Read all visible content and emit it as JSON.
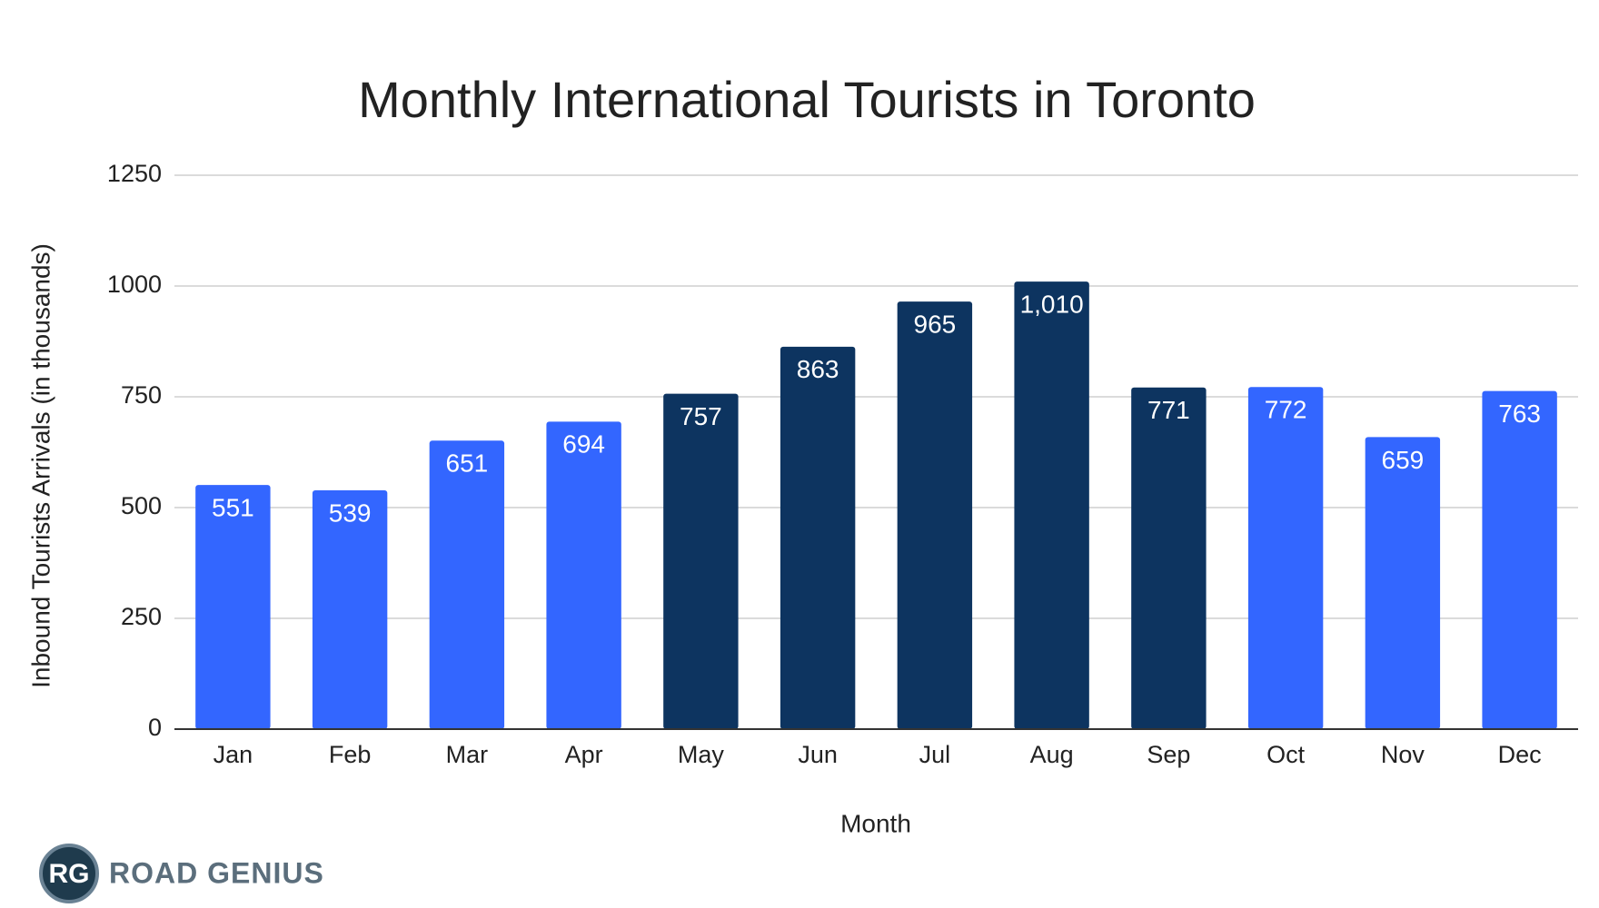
{
  "chart_data": {
    "type": "bar",
    "title": "Monthly International Tourists in Toronto",
    "x_label": "Month",
    "y_label": "Inbound Tourists Arrivals (in thousands)",
    "categories": [
      "Jan",
      "Feb",
      "Mar",
      "Apr",
      "May",
      "Jun",
      "Jul",
      "Aug",
      "Sep",
      "Oct",
      "Nov",
      "Dec"
    ],
    "values": [
      551,
      539,
      651,
      694,
      757,
      863,
      965,
      1010,
      771,
      772,
      659,
      763
    ],
    "value_labels": [
      "551",
      "539",
      "651",
      "694",
      "757",
      "863",
      "965",
      "1,010",
      "771",
      "772",
      "659",
      "763"
    ],
    "colors": [
      "#3366ff",
      "#3366ff",
      "#3366ff",
      "#3366ff",
      "#0d3460",
      "#0d3460",
      "#0d3460",
      "#0d3460",
      "#0d3460",
      "#3366ff",
      "#3366ff",
      "#3366ff"
    ],
    "ylim": [
      0,
      1250
    ],
    "yticks": [
      0,
      250,
      500,
      750,
      1000,
      1250
    ],
    "grid": true
  },
  "logo": {
    "badge": "RG",
    "text": "ROAD GENIUS"
  }
}
